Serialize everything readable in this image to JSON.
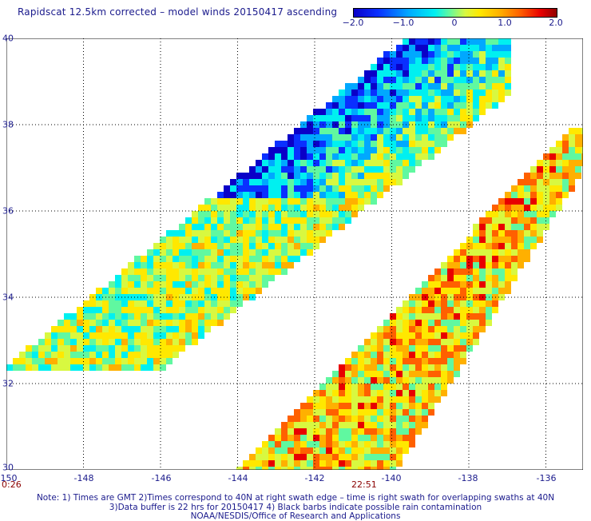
{
  "title": "Rapidscat 12.5km corrected – model winds 20150417 ascending",
  "colorbar": {
    "ticks": [
      "−2.0",
      "−1.0",
      "0",
      "1.0",
      "2.0"
    ],
    "colors": [
      "#0a00c8",
      "#0a30ff",
      "#00a8ff",
      "#00f0f0",
      "#60f8a0",
      "#d8f840",
      "#ffe800",
      "#ffb000",
      "#ff6000",
      "#e80000",
      "#900000"
    ]
  },
  "axes": {
    "lon_labels": [
      "-150",
      "-148",
      "-146",
      "-144",
      "-142",
      "-140",
      "-138",
      "-136"
    ],
    "lat_labels": [
      "40",
      "38",
      "36",
      "34",
      "32",
      "30"
    ],
    "lon_range": [
      -150,
      -135
    ],
    "lat_range": [
      30,
      40
    ]
  },
  "swath_times": [
    "0:26",
    "22:51"
  ],
  "notes": [
    "Note: 1) Times are GMT 2)Times correspond to 40N at right swath edge – time is right swath for overlapping swaths at 40N",
    "3)Data buffer is 22 hrs for 20150417 4) Black barbs indicate possible rain contamination",
    "NOAA/NESDIS/Office of Research and Applications"
  ]
}
